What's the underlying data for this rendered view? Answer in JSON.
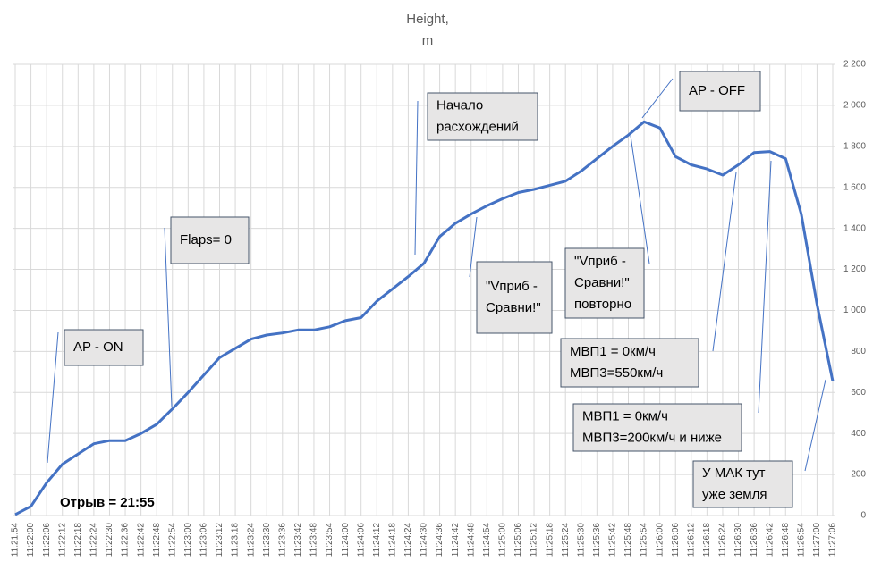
{
  "chart_data": {
    "type": "line",
    "title": [
      "Height,",
      "m"
    ],
    "categories": [
      "11:21:54",
      "11:22:00",
      "11:22:06",
      "11:22:12",
      "11:22:18",
      "11:22:24",
      "11:22:30",
      "11:22:36",
      "11:22:42",
      "11:22:48",
      "11:22:54",
      "11:23:00",
      "11:23:06",
      "11:23:12",
      "11:23:18",
      "11:23:24",
      "11:23:30",
      "11:23:36",
      "11:23:42",
      "11:23:48",
      "11:23:54",
      "11:24:00",
      "11:24:06",
      "11:24:12",
      "11:24:18",
      "11:24:24",
      "11:24:30",
      "11:24:36",
      "11:24:42",
      "11:24:48",
      "11:24:54",
      "11:25:00",
      "11:25:06",
      "11:25:12",
      "11:25:18",
      "11:25:24",
      "11:25:30",
      "11:25:36",
      "11:25:42",
      "11:25:48",
      "11:25:54",
      "11:26:00",
      "11:26:06",
      "11:26:12",
      "11:26:18",
      "11:26:24",
      "11:26:30",
      "11:26:36",
      "11:26:42",
      "11:26:48",
      "11:26:54",
      "11:27:00",
      "11:27:06"
    ],
    "values": [
      5,
      45,
      160,
      250,
      300,
      350,
      365,
      365,
      400,
      445,
      520,
      600,
      685,
      770,
      815,
      860,
      880,
      890,
      905,
      905,
      920,
      950,
      965,
      1045,
      1105,
      1165,
      1230,
      1360,
      1425,
      1470,
      1510,
      1545,
      1575,
      1590,
      1610,
      1630,
      1680,
      1740,
      1800,
      1855,
      1920,
      1890,
      1750,
      1710,
      1690,
      1660,
      1710,
      1770,
      1775,
      1740,
      1470,
      1030,
      655
    ],
    "color": "#4472c4",
    "ylim": [
      0,
      2200
    ],
    "yticks": [
      0,
      200,
      400,
      600,
      800,
      {
        "value": 1000,
        "label": "1 000"
      },
      {
        "value": 1200,
        "label": "1 200"
      },
      {
        "value": 1400,
        "label": "1 400"
      },
      {
        "value": 1600,
        "label": "1 600"
      },
      {
        "value": 1800,
        "label": "1 800"
      },
      {
        "value": 2000,
        "label": "2 000"
      },
      {
        "value": 2200,
        "label": "2 200"
      }
    ],
    "grid": true,
    "annotations": [
      {
        "lines": [
          "AP - ON"
        ]
      },
      {
        "lines": [
          "Flaps=  0"
        ]
      },
      {
        "lines": [
          "Начало",
          "расхождений"
        ]
      },
      {
        "lines": [
          "AP - OFF"
        ]
      },
      {
        "lines": [
          "\"Vприб -",
          "Сравни!\""
        ]
      },
      {
        "lines": [
          "\"Vприб -",
          "Сравни!\"",
          "повторно"
        ]
      },
      {
        "lines": [
          "МВП1 = 0км/ч",
          "МВП3=550км/ч"
        ]
      },
      {
        "lines": [
          "МВП1 = 0км/ч",
          "МВП3=200км/ч и ниже"
        ]
      },
      {
        "lines": [
          "У МАК тут",
          "уже земля"
        ]
      },
      {
        "lines": [
          "Отрыв = 21:55"
        ]
      }
    ]
  }
}
